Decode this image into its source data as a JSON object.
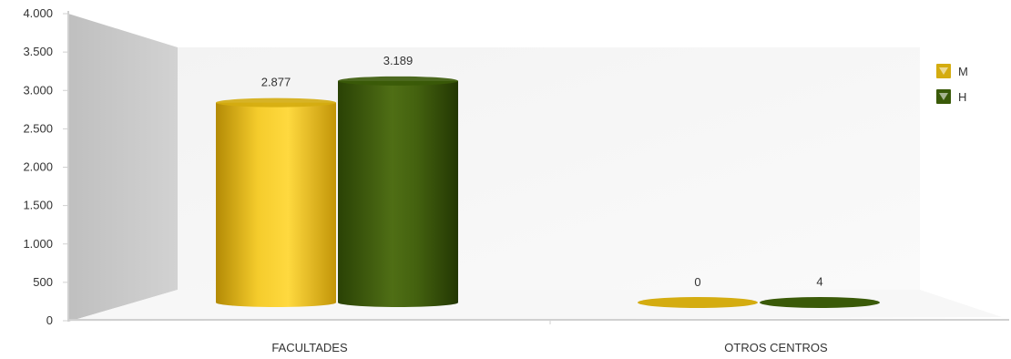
{
  "chart_data": {
    "type": "bar",
    "style": "3d-cylinder",
    "categories": [
      "FACULTADES",
      "OTROS CENTROS"
    ],
    "series": [
      {
        "name": "M",
        "values": [
          2877,
          0
        ],
        "labels": [
          "2.877",
          "0"
        ],
        "color": "#d4ac10"
      },
      {
        "name": "H",
        "values": [
          3189,
          4
        ],
        "labels": [
          "3.189",
          "4"
        ],
        "color": "#3a5a08"
      }
    ],
    "ylim": [
      0,
      4000
    ],
    "yticks": [
      0,
      500,
      1000,
      1500,
      2000,
      2500,
      3000,
      3500,
      4000
    ],
    "ytick_labels": [
      "0",
      "500",
      "1.000",
      "1.500",
      "2.000",
      "2.500",
      "3.000",
      "3.500",
      "4.000"
    ],
    "legend_position": "right",
    "grid": false
  },
  "colors": {
    "wall_side": "#c8c8c8",
    "wall_back": "#ececec",
    "axis": "#cfcfcf"
  }
}
